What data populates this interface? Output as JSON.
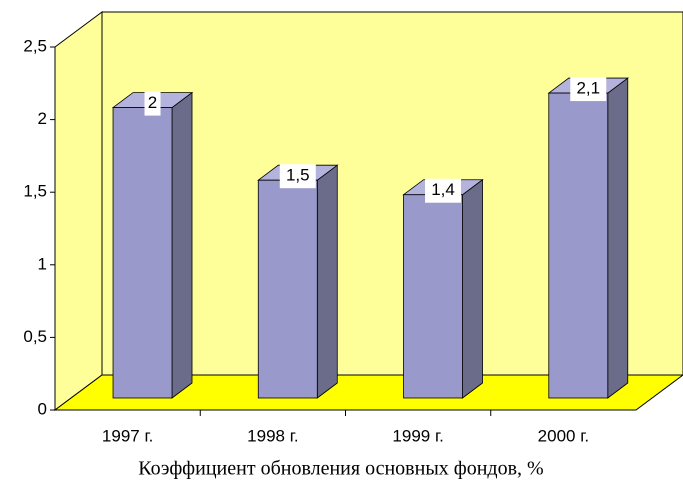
{
  "chart_data": {
    "type": "bar3d",
    "title": "Коэффициент обновления основных фондов, %",
    "categories": [
      "1997 г.",
      "1998 г.",
      "1999 г.",
      "2000 г."
    ],
    "values": [
      2,
      1.5,
      1.4,
      2.1
    ],
    "value_labels": [
      "2",
      "1,5",
      "1,4",
      "2,1"
    ],
    "color": "#9999cc",
    "ylim": [
      0,
      2.5
    ],
    "yticks": [
      0,
      {
        "value": 0.5,
        "label": "0,5"
      },
      1,
      {
        "value": 1.5,
        "label": "1,5"
      },
      2,
      {
        "value": 2.5,
        "label": "2,5"
      }
    ]
  }
}
